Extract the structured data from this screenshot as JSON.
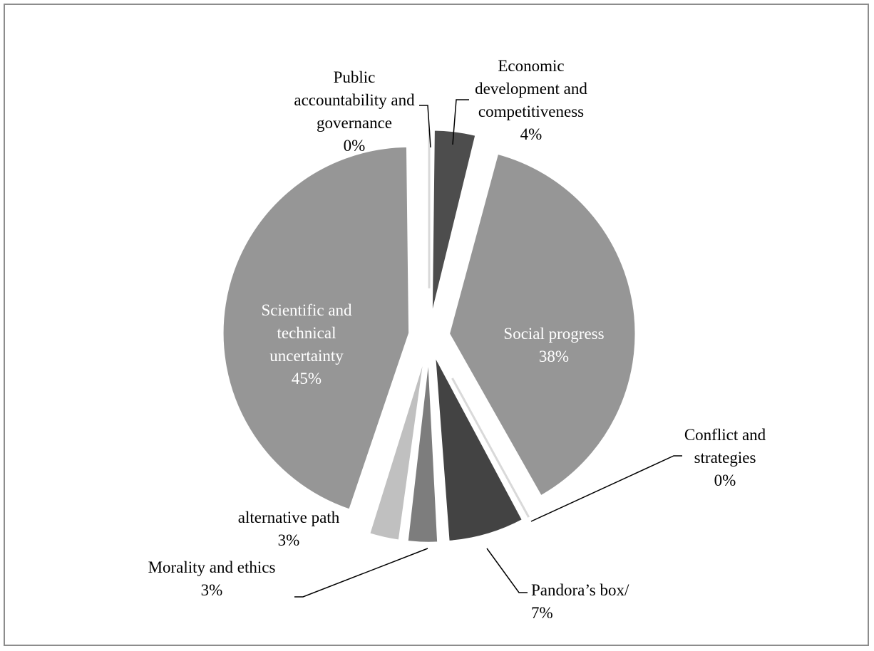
{
  "chart_data": {
    "type": "pie",
    "slices": [
      {
        "label": "Economic development and competitiveness",
        "lines": [
          "Economic",
          "development and",
          "competitiveness",
          "4%"
        ],
        "value": 4,
        "color": "#4d4d4d",
        "exploded": true
      },
      {
        "label": "Social progress",
        "lines": [
          "Social progress",
          "38%"
        ],
        "value": 38,
        "color": "#969696",
        "exploded": true
      },
      {
        "label": "Conflict and strategies",
        "lines": [
          "Conflict and",
          "strategies",
          "0%"
        ],
        "value": 0,
        "color": "#969696",
        "exploded": true
      },
      {
        "label": "Pandora’s box/",
        "lines": [
          "Pandora’s box/",
          "7%"
        ],
        "value": 7,
        "color": "#434343",
        "exploded": true
      },
      {
        "label": "Morality and ethics",
        "lines": [
          "Morality and ethics",
          "3%"
        ],
        "value": 3,
        "color": "#7d7d7d",
        "exploded": true
      },
      {
        "label": "alternative path",
        "lines": [
          "alternative path",
          "3%"
        ],
        "value": 3,
        "color": "#c0c0c0",
        "exploded": true
      },
      {
        "label": "Scientific and technical uncertainty",
        "lines": [
          "Scientific and",
          "technical",
          "uncertainty",
          "45%"
        ],
        "value": 45,
        "color": "#969696",
        "exploded": true
      },
      {
        "label": "Public accountability and governance",
        "lines": [
          "Public",
          "accountability and",
          "governance",
          "0%"
        ],
        "value": 0,
        "color": "#969696",
        "exploded": true
      }
    ],
    "title": "",
    "legend": "none"
  }
}
